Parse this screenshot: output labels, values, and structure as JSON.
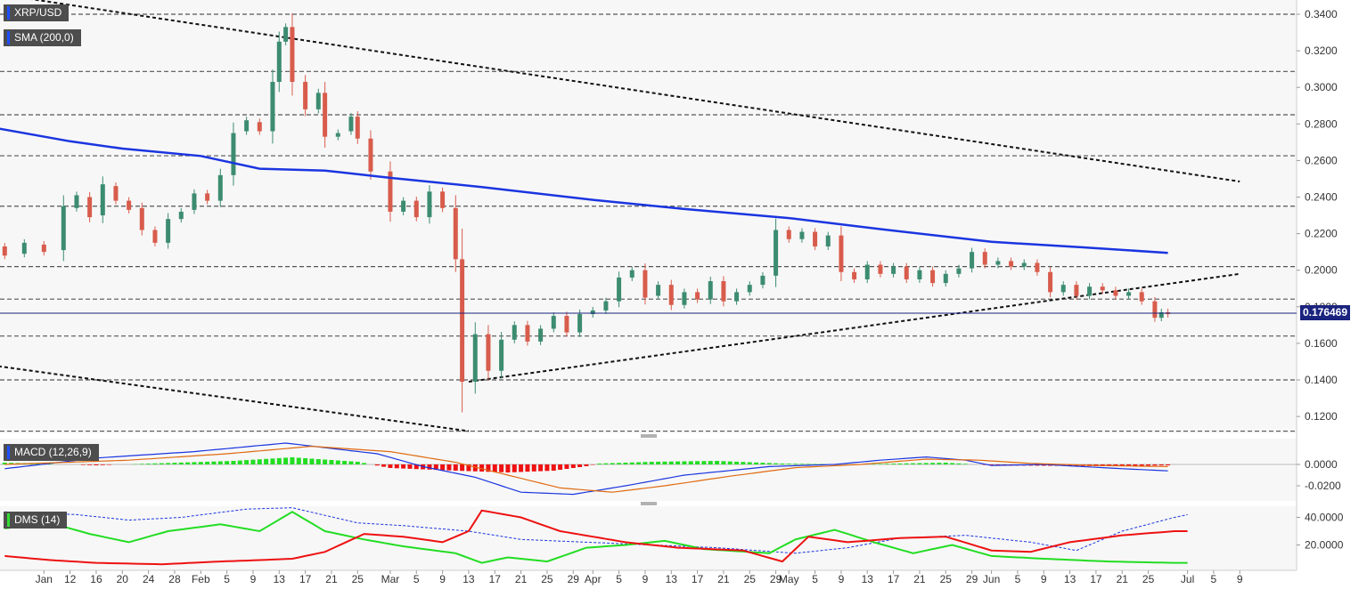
{
  "chart_data": [
    {
      "type": "candlestick",
      "symbol": "XRP/USD",
      "overlay_label": "SMA (200,0)",
      "current_price": "0.176469",
      "y_ticks": [
        "0.3400",
        "0.3200",
        "0.3000",
        "0.2800",
        "0.2600",
        "0.2400",
        "0.2200",
        "0.2000",
        "0.1800",
        "0.1600",
        "0.1400",
        "0.1200"
      ],
      "ylim": [
        0.112,
        0.347
      ],
      "x_ticks": [
        "Jan",
        "12",
        "16",
        "20",
        "24",
        "28",
        "Feb",
        "5",
        "9",
        "13",
        "17",
        "21",
        "25",
        "Mar",
        "5",
        "9",
        "13",
        "17",
        "21",
        "25",
        "29",
        "Apr",
        "5",
        "9",
        "13",
        "17",
        "21",
        "25",
        "29",
        "May",
        "5",
        "9",
        "13",
        "17",
        "21",
        "25",
        "29",
        "Jun",
        "5",
        "9",
        "13",
        "17",
        "21",
        "25",
        "Jul",
        "5",
        "9"
      ],
      "horizontal_levels": [
        0.34,
        0.3087,
        0.285,
        0.2626,
        0.235,
        0.202,
        0.1842,
        0.164,
        0.14,
        0.112
      ],
      "trendlines": [
        {
          "from": [
            "Jan 1",
            0.351
          ],
          "to": [
            "Jul 9",
            0.2485
          ]
        },
        {
          "from": [
            "Jan 1",
            0.1475
          ],
          "to": [
            "Mar 13",
            0.112
          ]
        },
        {
          "from": [
            "Mar 13",
            0.139
          ],
          "to": [
            "Jul 9",
            0.198
          ]
        }
      ],
      "sma_200": [
        [
          "Jan 1",
          0.2775
        ],
        [
          "Jan 12",
          0.2705
        ],
        [
          "Jan 20",
          0.2665
        ],
        [
          "Feb 1",
          0.2625
        ],
        [
          "Feb 10",
          0.2555
        ],
        [
          "Feb 20",
          0.2545
        ],
        [
          "Mar 1",
          0.2505
        ],
        [
          "Mar 15",
          0.2455
        ],
        [
          "Apr 1",
          0.2385
        ],
        [
          "Apr 15",
          0.2335
        ],
        [
          "May 1",
          0.2285
        ],
        [
          "May 15",
          0.2225
        ],
        [
          "Jun 1",
          0.2155
        ],
        [
          "Jun 15",
          0.2125
        ],
        [
          "Jun 28",
          0.2095
        ]
      ],
      "candles": [
        [
          "Jan 2",
          0.213,
          0.208
        ],
        [
          "Jan 5",
          0.209,
          0.215
        ],
        [
          "Jan 8",
          0.214,
          0.21
        ],
        [
          "Jan 11",
          0.211,
          0.235
        ],
        [
          "Jan 13",
          0.234,
          0.241
        ],
        [
          "Jan 15",
          0.24,
          0.229
        ],
        [
          "Jan 17",
          0.23,
          0.247
        ],
        [
          "Jan 19",
          0.246,
          0.238
        ],
        [
          "Jan 21",
          0.238,
          0.233
        ],
        [
          "Jan 23",
          0.234,
          0.222
        ],
        [
          "Jan 25",
          0.222,
          0.215
        ],
        [
          "Jan 27",
          0.215,
          0.228
        ],
        [
          "Jan 29",
          0.228,
          0.232
        ],
        [
          "Jan 31",
          0.233,
          0.242
        ],
        [
          "Feb 2",
          0.242,
          0.238
        ],
        [
          "Feb 4",
          0.238,
          0.252
        ],
        [
          "Feb 6",
          0.252,
          0.275
        ],
        [
          "Feb 8",
          0.276,
          0.282
        ],
        [
          "Feb 10",
          0.281,
          0.276
        ],
        [
          "Feb 12",
          0.276,
          0.303
        ],
        [
          "Feb 13",
          0.303,
          0.325
        ],
        [
          "Feb 14",
          0.325,
          0.333
        ],
        [
          "Feb 15",
          0.333,
          0.303
        ],
        [
          "Feb 17",
          0.303,
          0.288
        ],
        [
          "Feb 19",
          0.288,
          0.297
        ],
        [
          "Feb 20",
          0.297,
          0.273
        ],
        [
          "Feb 22",
          0.273,
          0.275
        ],
        [
          "Feb 24",
          0.276,
          0.284
        ],
        [
          "Feb 25",
          0.284,
          0.272
        ],
        [
          "Feb 27",
          0.272,
          0.254
        ],
        [
          "Mar 1",
          0.254,
          0.232
        ],
        [
          "Mar 3",
          0.232,
          0.238
        ],
        [
          "Mar 5",
          0.238,
          0.229
        ],
        [
          "Mar 7",
          0.229,
          0.243
        ],
        [
          "Mar 9",
          0.243,
          0.234
        ],
        [
          "Mar 11",
          0.234,
          0.206
        ],
        [
          "Mar 12",
          0.206,
          0.139
        ],
        [
          "Mar 14",
          0.139,
          0.165
        ],
        [
          "Mar 16",
          0.165,
          0.145
        ],
        [
          "Mar 18",
          0.145,
          0.162
        ],
        [
          "Mar 20",
          0.162,
          0.17
        ],
        [
          "Mar 22",
          0.17,
          0.161
        ],
        [
          "Mar 24",
          0.161,
          0.168
        ],
        [
          "Mar 26",
          0.168,
          0.175
        ],
        [
          "Mar 28",
          0.175,
          0.166
        ],
        [
          "Mar 30",
          0.166,
          0.176
        ],
        [
          "Apr 1",
          0.176,
          0.178
        ],
        [
          "Apr 3",
          0.178,
          0.183
        ],
        [
          "Apr 5",
          0.183,
          0.196
        ],
        [
          "Apr 7",
          0.196,
          0.2
        ],
        [
          "Apr 9",
          0.2,
          0.185
        ],
        [
          "Apr 11",
          0.186,
          0.192
        ],
        [
          "Apr 13",
          0.192,
          0.181
        ],
        [
          "Apr 15",
          0.181,
          0.188
        ],
        [
          "Apr 17",
          0.188,
          0.184
        ],
        [
          "Apr 19",
          0.184,
          0.194
        ],
        [
          "Apr 21",
          0.194,
          0.183
        ],
        [
          "Apr 23",
          0.183,
          0.188
        ],
        [
          "Apr 25",
          0.188,
          0.192
        ],
        [
          "Apr 27",
          0.192,
          0.197
        ],
        [
          "Apr 29",
          0.197,
          0.222
        ],
        [
          "May 1",
          0.222,
          0.217
        ],
        [
          "May 3",
          0.217,
          0.221
        ],
        [
          "May 5",
          0.221,
          0.213
        ],
        [
          "May 7",
          0.213,
          0.219
        ],
        [
          "May 9",
          0.219,
          0.199
        ],
        [
          "May 11",
          0.199,
          0.195
        ],
        [
          "May 13",
          0.195,
          0.203
        ],
        [
          "May 15",
          0.203,
          0.198
        ],
        [
          "May 17",
          0.198,
          0.202
        ],
        [
          "May 19",
          0.202,
          0.195
        ],
        [
          "May 21",
          0.195,
          0.2
        ],
        [
          "May 23",
          0.2,
          0.193
        ],
        [
          "May 25",
          0.193,
          0.198
        ],
        [
          "May 27",
          0.198,
          0.201
        ],
        [
          "May 29",
          0.201,
          0.21
        ],
        [
          "May 31",
          0.21,
          0.203
        ],
        [
          "Jun 2",
          0.203,
          0.205
        ],
        [
          "Jun 4",
          0.205,
          0.202
        ],
        [
          "Jun 6",
          0.202,
          0.204
        ],
        [
          "Jun 8",
          0.204,
          0.199
        ],
        [
          "Jun 10",
          0.199,
          0.188
        ],
        [
          "Jun 12",
          0.188,
          0.192
        ],
        [
          "Jun 14",
          0.192,
          0.186
        ],
        [
          "Jun 16",
          0.186,
          0.191
        ],
        [
          "Jun 18",
          0.191,
          0.189
        ],
        [
          "Jun 20",
          0.189,
          0.186
        ],
        [
          "Jun 22",
          0.186,
          0.188
        ],
        [
          "Jun 24",
          0.188,
          0.183
        ],
        [
          "Jun 26",
          0.183,
          0.174
        ],
        [
          "Jun 27",
          0.174,
          0.177
        ],
        [
          "Jun 28",
          0.177,
          0.176
        ]
      ]
    },
    {
      "type": "histogram+line",
      "label": "MACD (12,26,9)",
      "y_ticks": [
        "0.0000",
        "-0.0200"
      ],
      "ylim": [
        -0.032,
        0.02
      ]
    },
    {
      "type": "line",
      "label": "DMS (14)",
      "y_ticks": [
        "40.0000",
        "20.0000"
      ],
      "ylim": [
        3,
        48
      ]
    }
  ]
}
